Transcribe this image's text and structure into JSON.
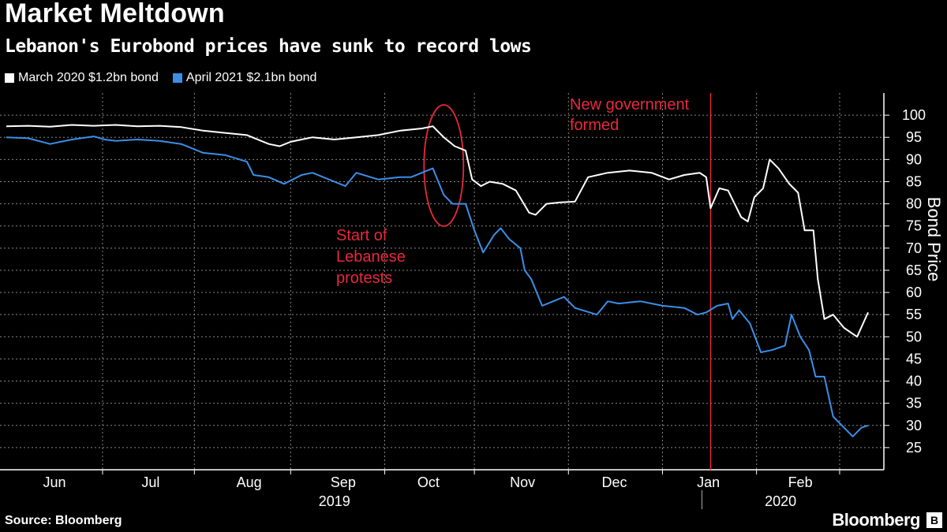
{
  "title": "Market Meltdown",
  "subtitle": "Lebanon's Eurobond prices have sunk to record lows",
  "source": "Source: Bloomberg",
  "brand": "Bloomberg",
  "colors": {
    "series1": "#ffffff",
    "series2": "#3b8fe8",
    "annotation": "#e8293c",
    "grid": "#888888"
  },
  "chart_data": {
    "type": "line",
    "ylabel": "Bond Price",
    "ylim": [
      20,
      105
    ],
    "y_ticks": [
      25,
      30,
      35,
      40,
      45,
      50,
      55,
      60,
      65,
      70,
      75,
      80,
      85,
      90,
      95,
      100
    ],
    "x_range_weeks": [
      0,
      39.4
    ],
    "months": [
      {
        "label": "Jun",
        "pos": 2.2
      },
      {
        "label": "Jul",
        "pos": 6.6
      },
      {
        "label": "Aug",
        "pos": 11.1
      },
      {
        "label": "Sep",
        "pos": 15.4
      },
      {
        "label": "Oct",
        "pos": 19.3
      },
      {
        "label": "Nov",
        "pos": 23.6
      },
      {
        "label": "Dec",
        "pos": 27.8
      },
      {
        "label": "Jan",
        "pos": 32.1
      },
      {
        "label": "Feb",
        "pos": 36.3
      }
    ],
    "month_bounds": [
      4.4,
      8.6,
      13.0,
      17.3,
      21.4,
      25.7,
      30.0,
      34.3,
      38.1
    ],
    "years": [
      {
        "label": "2019",
        "pos": 15.0
      },
      {
        "label": "2020",
        "pos": 35.4
      }
    ],
    "year_divider": 30.0,
    "series": [
      {
        "name": "March 2020 $1.2bn bond",
        "points": [
          [
            0,
            97.5
          ],
          [
            1,
            97.6
          ],
          [
            2,
            97.4
          ],
          [
            3,
            97.8
          ],
          [
            4,
            97.6
          ],
          [
            5,
            97.8
          ],
          [
            6,
            97.5
          ],
          [
            7,
            97.6
          ],
          [
            8,
            97.3
          ],
          [
            9,
            96.5
          ],
          [
            10,
            96
          ],
          [
            11,
            95.5
          ],
          [
            12,
            93.5
          ],
          [
            12.5,
            93
          ],
          [
            13,
            94
          ],
          [
            14,
            95
          ],
          [
            15,
            94.5
          ],
          [
            16,
            95
          ],
          [
            17,
            95.5
          ],
          [
            18,
            96.5
          ],
          [
            19,
            97
          ],
          [
            19.5,
            97.5
          ],
          [
            20,
            95
          ],
          [
            20.5,
            93
          ],
          [
            21,
            92
          ],
          [
            21.3,
            85.5
          ],
          [
            21.7,
            84
          ],
          [
            22.1,
            85
          ],
          [
            22.7,
            84.5
          ],
          [
            23.3,
            83
          ],
          [
            23.9,
            78
          ],
          [
            24.2,
            77.5
          ],
          [
            24.7,
            80
          ],
          [
            25.3,
            80.3
          ],
          [
            26,
            80.5
          ],
          [
            26.6,
            86
          ],
          [
            27.5,
            87
          ],
          [
            28.5,
            87.5
          ],
          [
            29.5,
            87
          ],
          [
            30.3,
            85.5
          ],
          [
            31,
            86.5
          ],
          [
            31.7,
            87
          ],
          [
            32,
            86
          ],
          [
            32.2,
            79
          ],
          [
            32.6,
            83.5
          ],
          [
            33,
            83
          ],
          [
            33.6,
            77
          ],
          [
            33.9,
            76
          ],
          [
            34.2,
            81.5
          ],
          [
            34.6,
            83.5
          ],
          [
            34.9,
            90
          ],
          [
            35.3,
            88
          ],
          [
            35.8,
            84.5
          ],
          [
            36.2,
            82.5
          ],
          [
            36.5,
            74
          ],
          [
            36.9,
            74
          ],
          [
            37.1,
            63
          ],
          [
            37.4,
            54
          ],
          [
            37.8,
            55
          ],
          [
            38.3,
            52
          ],
          [
            38.9,
            50
          ],
          [
            39.4,
            55.5
          ]
        ]
      },
      {
        "name": "April 2021 $2.1bn bond",
        "points": [
          [
            0,
            95
          ],
          [
            1,
            94.8
          ],
          [
            2,
            93.5
          ],
          [
            3,
            94.5
          ],
          [
            4,
            95.2
          ],
          [
            4.5,
            94.5
          ],
          [
            5,
            94.2
          ],
          [
            6,
            94.5
          ],
          [
            7,
            94.2
          ],
          [
            8,
            93.5
          ],
          [
            9,
            91.5
          ],
          [
            10,
            91
          ],
          [
            11,
            89.5
          ],
          [
            11.3,
            86.5
          ],
          [
            12,
            86
          ],
          [
            12.7,
            84.5
          ],
          [
            13.5,
            86.5
          ],
          [
            14,
            87
          ],
          [
            15,
            85
          ],
          [
            15.5,
            84
          ],
          [
            16,
            87
          ],
          [
            17,
            85.5
          ],
          [
            18,
            86
          ],
          [
            18.5,
            86
          ],
          [
            19,
            87
          ],
          [
            19.5,
            88
          ],
          [
            20,
            82
          ],
          [
            20.4,
            80
          ],
          [
            21,
            80
          ],
          [
            21.4,
            74
          ],
          [
            21.8,
            69
          ],
          [
            22.3,
            73
          ],
          [
            22.6,
            74.5
          ],
          [
            23,
            72
          ],
          [
            23.5,
            70
          ],
          [
            23.7,
            65
          ],
          [
            24,
            63
          ],
          [
            24.5,
            57
          ],
          [
            25,
            58
          ],
          [
            25.5,
            59
          ],
          [
            26,
            56.5
          ],
          [
            27,
            55
          ],
          [
            27.5,
            58
          ],
          [
            28,
            57.5
          ],
          [
            29,
            58
          ],
          [
            30,
            57
          ],
          [
            31,
            56.5
          ],
          [
            31.6,
            55
          ],
          [
            32,
            55.5
          ],
          [
            32.5,
            57
          ],
          [
            33,
            57.5
          ],
          [
            33.2,
            54
          ],
          [
            33.5,
            56
          ],
          [
            34,
            53
          ],
          [
            34.5,
            46.5
          ],
          [
            35,
            47
          ],
          [
            35.6,
            48
          ],
          [
            35.9,
            55
          ],
          [
            36.3,
            50
          ],
          [
            36.7,
            47
          ],
          [
            37,
            41
          ],
          [
            37.4,
            41
          ],
          [
            37.8,
            32
          ],
          [
            38.3,
            29.5
          ],
          [
            38.7,
            27.5
          ],
          [
            39.1,
            29.5
          ],
          [
            39.4,
            30
          ]
        ]
      }
    ],
    "annotations": [
      {
        "lines": [
          "Start of",
          "Lebanese",
          "protests"
        ],
        "x": 20.0,
        "y": 89
      },
      {
        "lines": [
          "New government",
          "formed"
        ],
        "x": 32.2,
        "y": 100
      }
    ]
  }
}
